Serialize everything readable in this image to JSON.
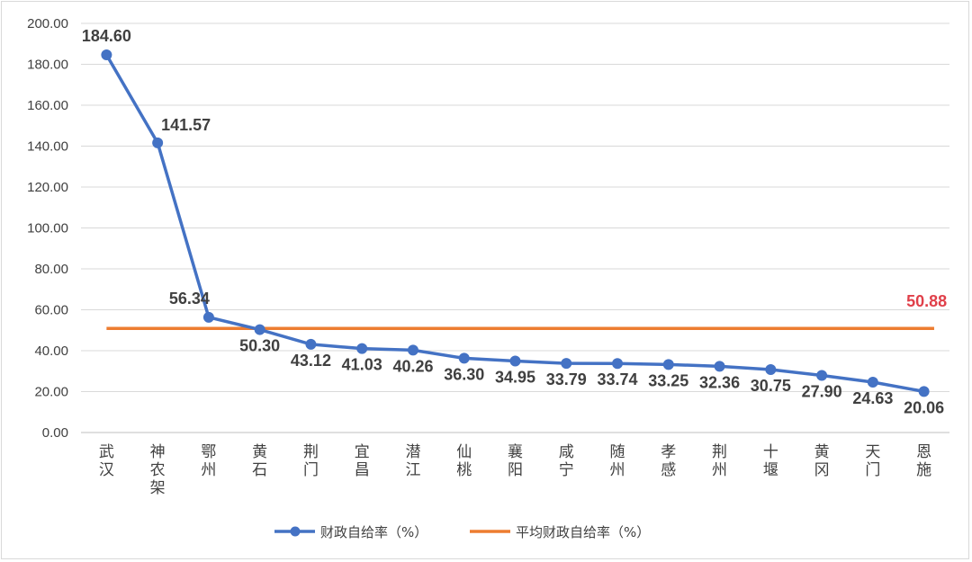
{
  "chart_data": {
    "type": "line",
    "categories": [
      "武汉",
      "神农架",
      "鄂州",
      "黄石",
      "荆门",
      "宜昌",
      "潜江",
      "仙桃",
      "襄阳",
      "咸宁",
      "随州",
      "孝感",
      "荆州",
      "十堰",
      "黄冈",
      "天门",
      "恩施"
    ],
    "series": [
      {
        "name": "财政自给率（%）",
        "values": [
          184.6,
          141.57,
          56.34,
          50.3,
          43.12,
          41.03,
          40.26,
          36.3,
          34.95,
          33.79,
          33.74,
          33.25,
          32.36,
          30.75,
          27.9,
          24.63,
          20.06
        ],
        "labels": [
          "184.60",
          "141.57",
          "56.34",
          "50.30",
          "43.12",
          "41.03",
          "40.26",
          "36.30",
          "34.95",
          "33.79",
          "33.74",
          "33.25",
          "32.36",
          "30.75",
          "27.90",
          "24.63",
          "20.06"
        ],
        "color": "#4472c4",
        "marker": "circle"
      },
      {
        "name": "平均财政自给率（%）",
        "value": 50.88,
        "label": "50.88",
        "label_color": "#e0404a",
        "color": "#ed7d31"
      }
    ],
    "ylim": [
      0,
      200
    ],
    "yticks": [
      "0.00",
      "20.00",
      "40.00",
      "60.00",
      "80.00",
      "100.00",
      "120.00",
      "140.00",
      "160.00",
      "180.00",
      "200.00"
    ],
    "grid": true,
    "legend_position": "bottom",
    "title": "",
    "xlabel": "",
    "ylabel": ""
  }
}
